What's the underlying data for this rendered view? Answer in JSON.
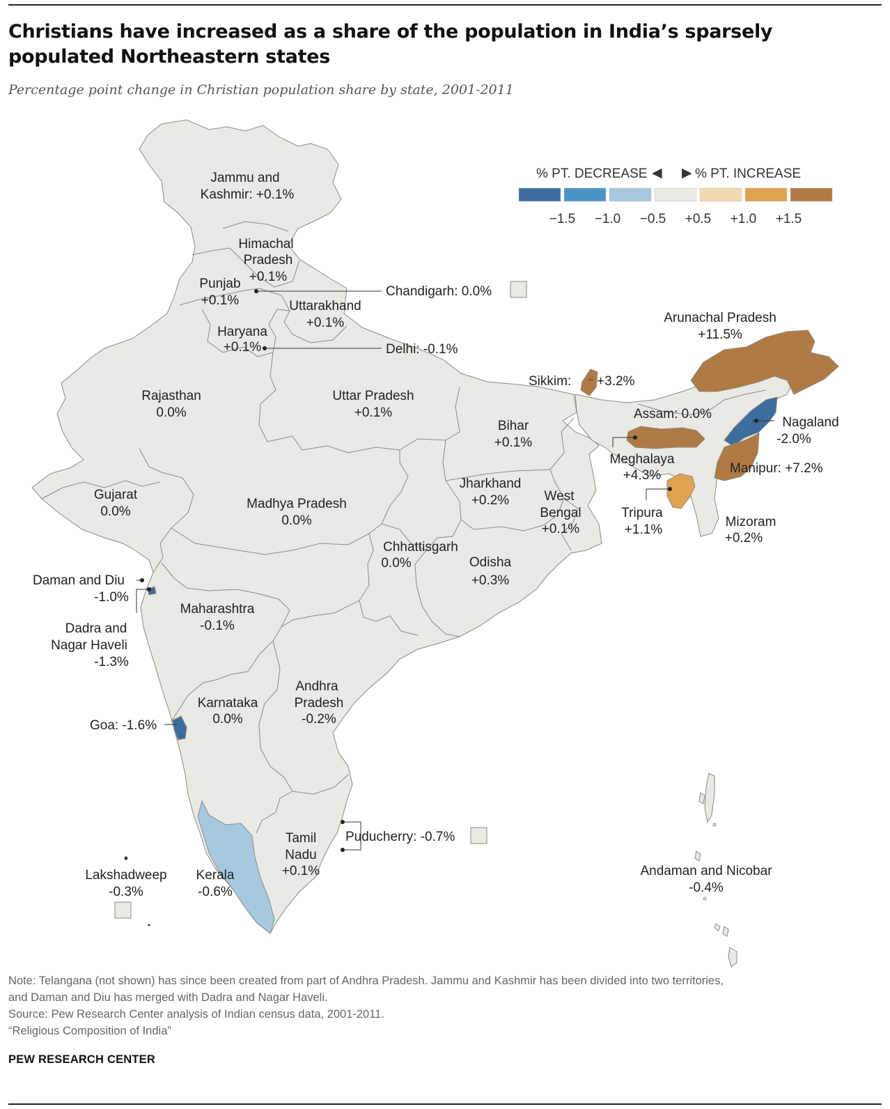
{
  "title": "Christians have increased as a share of the population in India’s sparsely populated Northeastern states",
  "subtitle": "Percentage point change in Christian population share by state, 2001-2011",
  "legend": {
    "decrease_label": "% PT. DECREASE",
    "increase_label": "% PT. INCREASE",
    "left_arrow": "◀",
    "right_arrow": "▶",
    "colors": [
      "#3b6e9e",
      "#4b93c4",
      "#a8c8e0",
      "#ebe9e3",
      "#f3d9b0",
      "#e0a151",
      "#b07a44"
    ],
    "ticks": [
      "−1.5",
      "−1.0",
      "−0.5",
      "+0.5",
      "+1.0",
      "+1.5"
    ]
  },
  "map": {
    "base_color": "#ebe9e3",
    "regions": [
      {
        "name": "Jammu and",
        "name2": "Kashmir: +0.1%"
      },
      {
        "name": "Himachal",
        "name2": "Pradesh",
        "value": "+0.1%"
      },
      {
        "name": "Punjab",
        "value": "+0.1%"
      },
      {
        "name": "Chandigarh: 0.0%"
      },
      {
        "name": "Uttarakhand",
        "value": "+0.1%"
      },
      {
        "name": "Haryana",
        "value": "+0.1%"
      },
      {
        "name": "Delhi: -0.1%"
      },
      {
        "name": "Rajasthan",
        "value": "0.0%"
      },
      {
        "name": "Uttar Pradesh",
        "value": "+0.1%"
      },
      {
        "name": "Bihar",
        "value": "+0.1%"
      },
      {
        "name": "Sikkim:",
        "value": "+3.2%"
      },
      {
        "name": "Arunachal Pradesh",
        "value": "+11.5%"
      },
      {
        "name": "Assam: 0.0%"
      },
      {
        "name": "Nagaland",
        "value": "-2.0%"
      },
      {
        "name": "Meghalaya",
        "value": "+4.3%"
      },
      {
        "name": "Manipur: +7.2%"
      },
      {
        "name": "Tripura",
        "value": "+1.1%"
      },
      {
        "name": "Mizoram",
        "value": "+0.2%"
      },
      {
        "name": "Gujarat",
        "value": "0.0%"
      },
      {
        "name": "Madhya Pradesh",
        "value": "0.0%"
      },
      {
        "name": "Jharkhand",
        "value": "+0.2%"
      },
      {
        "name": "West",
        "name2": "Bengal",
        "value": "+0.1%"
      },
      {
        "name": "Chhattisgarh",
        "value": "0.0%"
      },
      {
        "name": "Odisha",
        "value": "+0.3%"
      },
      {
        "name": "Daman and Diu",
        "value": "-1.0%"
      },
      {
        "name": "Dadra and",
        "name2": "Nagar Haveli",
        "value": "-1.3%"
      },
      {
        "name": "Maharashtra",
        "value": "-0.1%"
      },
      {
        "name": "Andhra",
        "name2": "Pradesh",
        "value": "-0.2%"
      },
      {
        "name": "Karnataka",
        "value": "0.0%"
      },
      {
        "name": "Goa: -1.6%"
      },
      {
        "name": "Puducherry: -0.7%"
      },
      {
        "name": "Tamil",
        "name2": "Nadu",
        "value": "+0.1%"
      },
      {
        "name": "Lakshadweep",
        "value": "-0.3%"
      },
      {
        "name": "Kerala",
        "value": "-0.6%"
      },
      {
        "name": "Andaman and Nicobar",
        "value": "-0.4%"
      }
    ]
  },
  "notes": {
    "note1": "Note: Telangana (not shown) has since been created from part of Andhra Pradesh. Jammu and Kashmir has been divided into two territories,",
    "note2": "and Daman and Diu has merged with Dadra and Nagar Haveli.",
    "source": "Source: Pew Research Center analysis of Indian census data, 2001-2011.",
    "report": "“Religious Composition of India”"
  },
  "credit": "PEW RESEARCH CENTER"
}
